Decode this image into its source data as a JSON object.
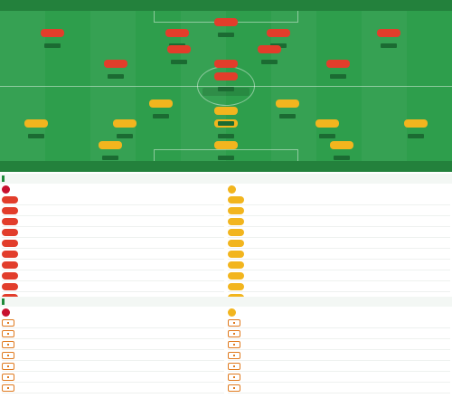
{
  "header": {
    "title": "",
    "subtitle": ""
  },
  "pitch": {
    "home_team": "",
    "away_team": "",
    "home_info": "",
    "away_info": "",
    "score": "",
    "home_players": [
      {
        "num": "",
        "name": "",
        "rating": ""
      },
      {
        "num": "",
        "name": "",
        "rating": ""
      },
      {
        "num": "",
        "name": "",
        "rating": ""
      },
      {
        "num": "",
        "name": "",
        "rating": ""
      },
      {
        "num": "",
        "name": "",
        "rating": ""
      },
      {
        "num": "",
        "name": "",
        "rating": ""
      },
      {
        "num": "",
        "name": "",
        "rating": ""
      },
      {
        "num": "",
        "name": "",
        "rating": ""
      },
      {
        "num": "",
        "name": "",
        "rating": ""
      },
      {
        "num": "",
        "name": "",
        "rating": ""
      },
      {
        "num": "",
        "name": "",
        "rating": ""
      }
    ],
    "away_players": [
      {
        "num": "",
        "name": "",
        "rating": ""
      },
      {
        "num": "",
        "name": "",
        "rating": ""
      },
      {
        "num": "",
        "name": "",
        "rating": ""
      },
      {
        "num": "",
        "name": "",
        "rating": ""
      },
      {
        "num": "",
        "name": "",
        "rating": ""
      },
      {
        "num": "",
        "name": "",
        "rating": ""
      },
      {
        "num": "",
        "name": "",
        "rating": ""
      },
      {
        "num": "",
        "name": "",
        "rating": ""
      },
      {
        "num": "",
        "name": "",
        "rating": ""
      },
      {
        "num": "",
        "name": "",
        "rating": ""
      },
      {
        "num": "",
        "name": "",
        "rating": ""
      }
    ]
  },
  "subs": {
    "title": "",
    "home": {
      "team": "",
      "rows": [
        {
          "num": "",
          "name": "",
          "sub": "",
          "note": ""
        },
        {
          "num": "",
          "name": "",
          "sub": "",
          "note": ""
        },
        {
          "num": "",
          "name": "",
          "sub": "",
          "note": ""
        },
        {
          "num": "",
          "name": "",
          "sub": "",
          "note": ""
        },
        {
          "num": "",
          "name": "",
          "sub": "",
          "note": ""
        },
        {
          "num": "",
          "name": "",
          "sub": "",
          "note": ""
        },
        {
          "num": "",
          "name": "",
          "sub": "",
          "note": ""
        },
        {
          "num": "",
          "name": "",
          "sub": "",
          "note": ""
        },
        {
          "num": "",
          "name": "",
          "sub": "",
          "note": ""
        },
        {
          "num": "",
          "name": "",
          "sub": "",
          "note": ""
        }
      ]
    },
    "away": {
      "team": "",
      "rows": [
        {
          "num": "",
          "name": "",
          "sub": "",
          "note": ""
        },
        {
          "num": "",
          "name": "",
          "sub": "",
          "note": ""
        },
        {
          "num": "",
          "name": "",
          "sub": "",
          "note": ""
        },
        {
          "num": "",
          "name": "",
          "sub": "",
          "note": ""
        },
        {
          "num": "",
          "name": "",
          "sub": "",
          "note": ""
        },
        {
          "num": "",
          "name": "",
          "sub": "",
          "note": ""
        },
        {
          "num": "",
          "name": "",
          "sub": "",
          "note": ""
        },
        {
          "num": "",
          "name": "",
          "sub": "",
          "note": ""
        },
        {
          "num": "",
          "name": "",
          "sub": "",
          "note": ""
        },
        {
          "num": "",
          "name": "",
          "sub": "",
          "note": ""
        }
      ]
    }
  },
  "injuries": {
    "title": "",
    "home": {
      "team": "",
      "rows": [
        {
          "name": "",
          "sub": ""
        },
        {
          "name": "",
          "sub": ""
        },
        {
          "name": "",
          "sub": ""
        },
        {
          "name": "",
          "sub": ""
        },
        {
          "name": "",
          "sub": ""
        },
        {
          "name": "",
          "sub": ""
        },
        {
          "name": "",
          "sub": ""
        },
        {
          "name": "",
          "sub": ""
        }
      ]
    },
    "away": {
      "team": "",
      "rows": [
        {
          "name": "",
          "sub": ""
        },
        {
          "name": "",
          "sub": ""
        },
        {
          "name": "",
          "sub": ""
        },
        {
          "name": "",
          "sub": ""
        },
        {
          "name": "",
          "sub": ""
        },
        {
          "name": "",
          "sub": ""
        },
        {
          "name": "",
          "sub": ""
        }
      ]
    }
  },
  "colors": {
    "home": "#e23d2b",
    "away": "#f2b51e",
    "pitch": "#2e9e4c",
    "accent": "#1f8a3b"
  }
}
